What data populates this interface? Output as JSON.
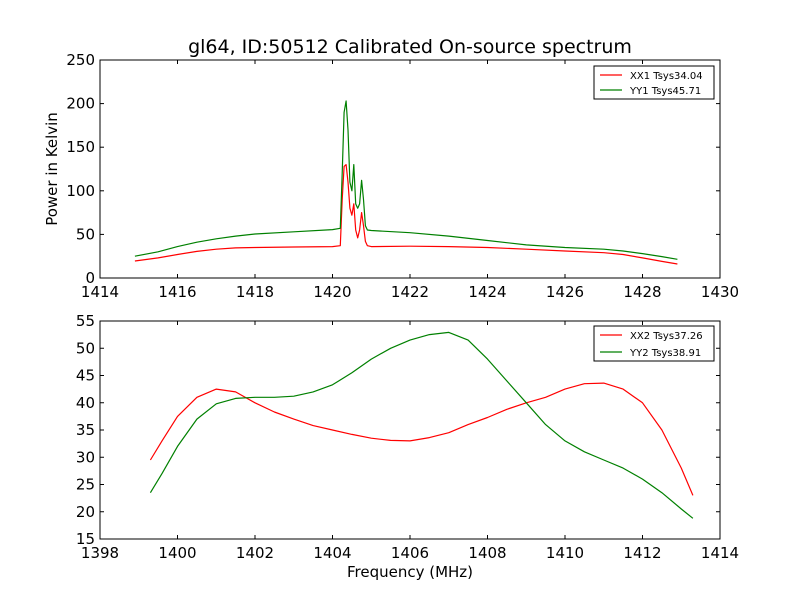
{
  "figure": {
    "title": "gl64, ID:50512 Calibrated On-source spectrum",
    "xlabel": "Frequency (MHz)"
  },
  "chart_data": [
    {
      "type": "line",
      "ylabel": "Power in Kelvin",
      "xlabel": "",
      "xlim": [
        1414,
        1430
      ],
      "ylim": [
        0,
        250
      ],
      "xticks": [
        1414,
        1416,
        1418,
        1420,
        1422,
        1424,
        1426,
        1428,
        1430
      ],
      "yticks": [
        0,
        50,
        100,
        150,
        200,
        250
      ],
      "grid": false,
      "legend": "top-right",
      "series": [
        {
          "name": "XX1 Tsys34.04",
          "color": "#ff0000",
          "points": [
            [
              1414.9,
              19.5
            ],
            [
              1415.5,
              23
            ],
            [
              1416,
              27
            ],
            [
              1416.5,
              30.5
            ],
            [
              1417,
              33
            ],
            [
              1417.5,
              34.5
            ],
            [
              1418,
              35
            ],
            [
              1419,
              35.5
            ],
            [
              1420,
              36
            ],
            [
              1420.2,
              37
            ],
            [
              1420.25,
              90
            ],
            [
              1420.3,
              128
            ],
            [
              1420.35,
              130
            ],
            [
              1420.4,
              110
            ],
            [
              1420.45,
              80
            ],
            [
              1420.5,
              72
            ],
            [
              1420.55,
              85
            ],
            [
              1420.6,
              55
            ],
            [
              1420.65,
              46
            ],
            [
              1420.7,
              55
            ],
            [
              1420.75,
              75
            ],
            [
              1420.8,
              60
            ],
            [
              1420.85,
              42
            ],
            [
              1420.9,
              37
            ],
            [
              1421,
              36
            ],
            [
              1422,
              36.5
            ],
            [
              1423,
              36
            ],
            [
              1424,
              35
            ],
            [
              1425,
              33
            ],
            [
              1426,
              31
            ],
            [
              1427,
              29
            ],
            [
              1427.5,
              27
            ],
            [
              1428,
              23
            ],
            [
              1428.5,
              19
            ],
            [
              1428.9,
              16
            ]
          ]
        },
        {
          "name": "YY1 Tsys45.71",
          "color": "#008000",
          "points": [
            [
              1414.9,
              25
            ],
            [
              1415.5,
              30
            ],
            [
              1416,
              36
            ],
            [
              1416.5,
              41
            ],
            [
              1417,
              45
            ],
            [
              1417.5,
              48
            ],
            [
              1418,
              50.5
            ],
            [
              1419,
              53
            ],
            [
              1420,
              55.5
            ],
            [
              1420.2,
              57
            ],
            [
              1420.25,
              120
            ],
            [
              1420.3,
              190
            ],
            [
              1420.35,
              203
            ],
            [
              1420.4,
              170
            ],
            [
              1420.45,
              110
            ],
            [
              1420.5,
              100
            ],
            [
              1420.55,
              130
            ],
            [
              1420.6,
              85
            ],
            [
              1420.65,
              80
            ],
            [
              1420.7,
              85
            ],
            [
              1420.75,
              112
            ],
            [
              1420.8,
              90
            ],
            [
              1420.85,
              60
            ],
            [
              1420.9,
              55
            ],
            [
              1421,
              54.5
            ],
            [
              1422,
              52
            ],
            [
              1423,
              48
            ],
            [
              1424,
              43
            ],
            [
              1425,
              38
            ],
            [
              1426,
              35
            ],
            [
              1427,
              33
            ],
            [
              1427.5,
              31
            ],
            [
              1428,
              28
            ],
            [
              1428.5,
              24.5
            ],
            [
              1428.9,
              21.5
            ]
          ]
        }
      ]
    },
    {
      "type": "line",
      "ylabel": "",
      "xlabel": "Frequency (MHz)",
      "xlim": [
        1398,
        1414
      ],
      "ylim": [
        15,
        55
      ],
      "xticks": [
        1398,
        1400,
        1402,
        1404,
        1406,
        1408,
        1410,
        1412,
        1414
      ],
      "yticks": [
        15,
        20,
        25,
        30,
        35,
        40,
        45,
        50,
        55
      ],
      "grid": false,
      "legend": "top-right",
      "series": [
        {
          "name": "XX2 Tsys37.26",
          "color": "#ff0000",
          "points": [
            [
              1399.3,
              29.5
            ],
            [
              1399.6,
              33
            ],
            [
              1400,
              37.5
            ],
            [
              1400.5,
              41
            ],
            [
              1401,
              42.5
            ],
            [
              1401.5,
              42
            ],
            [
              1402,
              40
            ],
            [
              1402.5,
              38.3
            ],
            [
              1403,
              37
            ],
            [
              1403.5,
              35.8
            ],
            [
              1404,
              35
            ],
            [
              1404.5,
              34.2
            ],
            [
              1405,
              33.5
            ],
            [
              1405.5,
              33.1
            ],
            [
              1406,
              33
            ],
            [
              1406.5,
              33.6
            ],
            [
              1407,
              34.5
            ],
            [
              1407.5,
              36
            ],
            [
              1408,
              37.3
            ],
            [
              1408.5,
              38.8
            ],
            [
              1409,
              40
            ],
            [
              1409.5,
              41
            ],
            [
              1410,
              42.5
            ],
            [
              1410.5,
              43.5
            ],
            [
              1411,
              43.6
            ],
            [
              1411.5,
              42.5
            ],
            [
              1412,
              40
            ],
            [
              1412.5,
              35
            ],
            [
              1413,
              28
            ],
            [
              1413.3,
              23
            ]
          ]
        },
        {
          "name": "YY2 Tsys38.91",
          "color": "#008000",
          "points": [
            [
              1399.3,
              23.5
            ],
            [
              1399.6,
              27
            ],
            [
              1400,
              32
            ],
            [
              1400.5,
              37
            ],
            [
              1401,
              39.8
            ],
            [
              1401.5,
              40.8
            ],
            [
              1402,
              41
            ],
            [
              1402.5,
              41
            ],
            [
              1403,
              41.2
            ],
            [
              1403.5,
              42
            ],
            [
              1404,
              43.3
            ],
            [
              1404.5,
              45.5
            ],
            [
              1405,
              48
            ],
            [
              1405.5,
              50
            ],
            [
              1406,
              51.5
            ],
            [
              1406.5,
              52.5
            ],
            [
              1407,
              52.9
            ],
            [
              1407.5,
              51.5
            ],
            [
              1408,
              48
            ],
            [
              1408.5,
              44
            ],
            [
              1409,
              40
            ],
            [
              1409.5,
              36
            ],
            [
              1410,
              33
            ],
            [
              1410.5,
              31
            ],
            [
              1411,
              29.5
            ],
            [
              1411.5,
              28
            ],
            [
              1412,
              26
            ],
            [
              1412.5,
              23.5
            ],
            [
              1413,
              20.5
            ],
            [
              1413.3,
              18.8
            ]
          ]
        }
      ]
    }
  ]
}
